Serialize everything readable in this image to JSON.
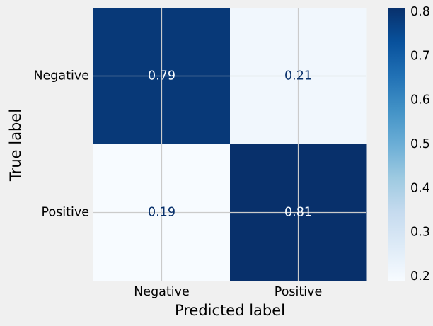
{
  "chart_data": {
    "type": "heatmap",
    "title": "",
    "xlabel": "Predicted label",
    "ylabel": "True label",
    "x_categories": [
      "Negative",
      "Positive"
    ],
    "y_categories": [
      "Negative",
      "Positive"
    ],
    "values": [
      [
        0.79,
        0.21
      ],
      [
        0.19,
        0.81
      ]
    ],
    "value_labels": [
      [
        "0.79",
        "0.21"
      ],
      [
        "0.19",
        "0.81"
      ]
    ],
    "colormap": "Blues",
    "colorbar": {
      "range": [
        0.19,
        0.81
      ],
      "ticks": [
        0.2,
        0.3,
        0.4,
        0.5,
        0.6,
        0.7,
        0.8
      ],
      "tick_labels": [
        "0.2",
        "0.3",
        "0.4",
        "0.5",
        "0.6",
        "0.7",
        "0.8"
      ]
    },
    "grid": true,
    "colors": {
      "background": "#f0f0f0",
      "grid": "#cbcbcb",
      "text_on_dark": "#f7fbff",
      "text_on_light": "#08306b"
    }
  }
}
